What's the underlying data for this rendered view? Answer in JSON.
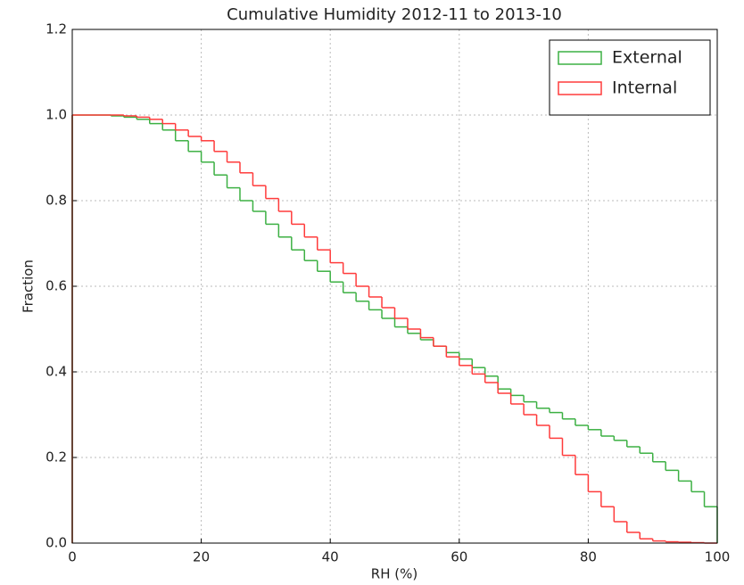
{
  "chart_data": {
    "type": "histogram",
    "title": "Cumulative Humidity 2012-11 to 2013-10",
    "xlabel": "RH (%)",
    "ylabel": "Fraction",
    "bins": [
      0,
      2,
      4,
      6,
      8,
      10,
      12,
      14,
      16,
      18,
      20,
      22,
      24,
      26,
      28,
      30,
      32,
      34,
      36,
      38,
      40,
      42,
      44,
      46,
      48,
      50,
      52,
      54,
      56,
      58,
      60,
      62,
      64,
      66,
      68,
      70,
      72,
      74,
      76,
      78,
      80,
      82,
      84,
      86,
      88,
      90,
      92,
      94,
      96,
      98,
      100
    ],
    "series": [
      {
        "name": "External",
        "color": "#3cb043",
        "values": [
          1.0,
          1.0,
          1.0,
          0.998,
          0.995,
          0.99,
          0.98,
          0.965,
          0.94,
          0.915,
          0.89,
          0.86,
          0.83,
          0.8,
          0.775,
          0.745,
          0.715,
          0.685,
          0.66,
          0.635,
          0.61,
          0.585,
          0.565,
          0.545,
          0.525,
          0.505,
          0.49,
          0.475,
          0.46,
          0.445,
          0.43,
          0.41,
          0.39,
          0.36,
          0.345,
          0.33,
          0.315,
          0.305,
          0.29,
          0.275,
          0.265,
          0.25,
          0.24,
          0.225,
          0.21,
          0.19,
          0.17,
          0.145,
          0.12,
          0.085
        ]
      },
      {
        "name": "Internal",
        "color": "#ff3b3b",
        "values": [
          1.0,
          1.0,
          1.0,
          1.0,
          0.998,
          0.995,
          0.99,
          0.98,
          0.965,
          0.95,
          0.94,
          0.915,
          0.89,
          0.865,
          0.835,
          0.805,
          0.775,
          0.745,
          0.715,
          0.685,
          0.655,
          0.63,
          0.6,
          0.575,
          0.55,
          0.525,
          0.5,
          0.48,
          0.46,
          0.435,
          0.415,
          0.395,
          0.375,
          0.35,
          0.325,
          0.3,
          0.275,
          0.245,
          0.205,
          0.16,
          0.12,
          0.085,
          0.05,
          0.025,
          0.01,
          0.005,
          0.003,
          0.002,
          0.001,
          0.0
        ]
      }
    ],
    "xlim": [
      0,
      100
    ],
    "ylim": [
      0,
      1.2
    ],
    "xticks": [
      0,
      20,
      40,
      60,
      80,
      100
    ],
    "yticks": [
      {
        "value": 0,
        "label": "0.0"
      },
      0.2,
      0.4,
      0.6,
      0.8,
      {
        "value": 1,
        "label": "1.0"
      },
      1.2
    ],
    "grid": true,
    "legend": "upper right"
  }
}
